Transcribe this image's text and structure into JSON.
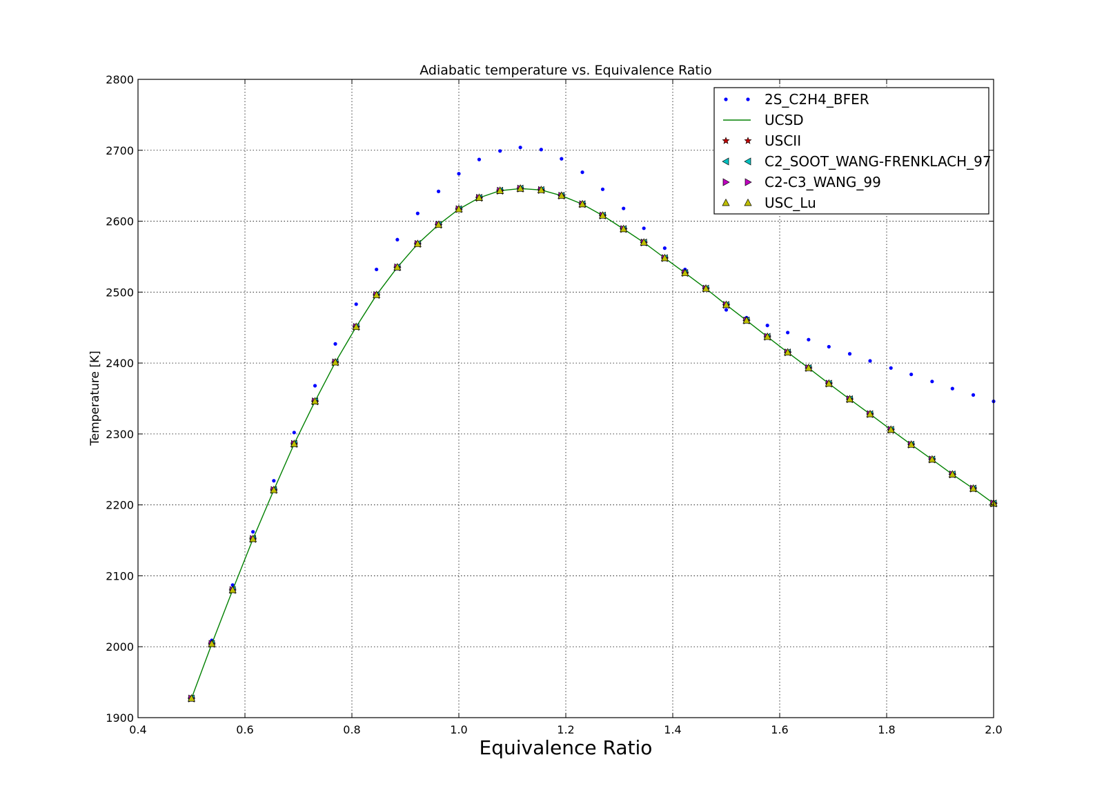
{
  "chart_data": {
    "type": "line",
    "title": "Adiabatic temperature vs. Equivalence Ratio",
    "xlabel": "Equivalence Ratio",
    "ylabel": "Temperature [K]",
    "xlim": [
      0.4,
      2.0
    ],
    "ylim": [
      1900,
      2800
    ],
    "xticks": [
      0.4,
      0.6,
      0.8,
      1.0,
      1.2,
      1.4,
      1.6,
      1.8,
      2.0
    ],
    "xtick_labels": [
      "0.4",
      "0.6",
      "0.8",
      "1.0",
      "1.2",
      "1.4",
      "1.6",
      "1.8",
      "2.0"
    ],
    "yticks": [
      1900,
      2000,
      2100,
      2200,
      2300,
      2400,
      2500,
      2600,
      2700,
      2800
    ],
    "ytick_labels": [
      "1900",
      "2000",
      "2100",
      "2200",
      "2300",
      "2400",
      "2500",
      "2600",
      "2700",
      "2800"
    ],
    "grid": true,
    "legend_position": "top-right",
    "x": [
      0.5,
      0.538,
      0.577,
      0.615,
      0.654,
      0.692,
      0.731,
      0.769,
      0.808,
      0.846,
      0.885,
      0.923,
      0.962,
      1.0,
      1.038,
      1.077,
      1.115,
      1.154,
      1.192,
      1.231,
      1.269,
      1.308,
      1.346,
      1.385,
      1.423,
      1.462,
      1.5,
      1.538,
      1.577,
      1.615,
      1.654,
      1.692,
      1.731,
      1.769,
      1.808,
      1.846,
      1.885,
      1.923,
      1.962,
      2.0
    ],
    "series": [
      {
        "name": "2S_C2H4_BFER",
        "marker": "dot",
        "color": "#0000ff",
        "values": [
          1929,
          2009,
          2087,
          2162,
          2234,
          2302,
          2368,
          2427,
          2483,
          2532,
          2574,
          2611,
          2642,
          2667,
          2687,
          2699,
          2704,
          2701,
          2688,
          2669,
          2645,
          2618,
          2590,
          2562,
          2532,
          2505,
          2475,
          2464,
          2453,
          2443,
          2433,
          2423,
          2413,
          2403,
          2393,
          2384,
          2374,
          2364,
          2355,
          2346
        ]
      },
      {
        "name": "UCSD",
        "marker": "line",
        "color": "#008000",
        "values": [
          1927,
          2004,
          2080,
          2152,
          2221,
          2286,
          2346,
          2401,
          2451,
          2496,
          2535,
          2568,
          2595,
          2617,
          2633,
          2643,
          2646,
          2644,
          2636,
          2624,
          2608,
          2589,
          2570,
          2548,
          2527,
          2505,
          2482,
          2460,
          2437,
          2415,
          2393,
          2371,
          2349,
          2328,
          2306,
          2285,
          2264,
          2243,
          2223,
          2202
        ]
      },
      {
        "name": "USCII",
        "marker": "star",
        "color": "#bf0000",
        "values": [
          1927,
          2004,
          2080,
          2152,
          2221,
          2286,
          2346,
          2401,
          2451,
          2496,
          2535,
          2568,
          2595,
          2617,
          2633,
          2643,
          2646,
          2644,
          2636,
          2624,
          2608,
          2589,
          2570,
          2548,
          2527,
          2505,
          2482,
          2460,
          2437,
          2415,
          2393,
          2371,
          2349,
          2328,
          2306,
          2285,
          2264,
          2243,
          2223,
          2202
        ]
      },
      {
        "name": "C2_SOOT_WANG-FRENKLACH_97",
        "marker": "triangle-left",
        "color": "#00bfbf",
        "values": [
          1927,
          2004,
          2080,
          2152,
          2221,
          2286,
          2346,
          2401,
          2451,
          2496,
          2535,
          2568,
          2595,
          2617,
          2633,
          2643,
          2646,
          2644,
          2636,
          2624,
          2608,
          2589,
          2570,
          2548,
          2527,
          2505,
          2482,
          2460,
          2437,
          2415,
          2393,
          2371,
          2349,
          2328,
          2306,
          2285,
          2264,
          2243,
          2223,
          2202
        ]
      },
      {
        "name": "C2-C3_WANG_99",
        "marker": "triangle-right",
        "color": "#bf00bf",
        "values": [
          1927,
          2004,
          2080,
          2152,
          2221,
          2286,
          2346,
          2401,
          2451,
          2496,
          2535,
          2568,
          2595,
          2617,
          2633,
          2643,
          2646,
          2644,
          2636,
          2624,
          2608,
          2589,
          2570,
          2548,
          2527,
          2505,
          2482,
          2460,
          2437,
          2415,
          2393,
          2371,
          2349,
          2328,
          2306,
          2285,
          2264,
          2243,
          2223,
          2202
        ]
      },
      {
        "name": "USC_Lu",
        "marker": "triangle-up",
        "color": "#bfbf00",
        "values": [
          1927,
          2004,
          2080,
          2152,
          2221,
          2286,
          2346,
          2401,
          2451,
          2496,
          2535,
          2568,
          2595,
          2617,
          2633,
          2643,
          2646,
          2644,
          2636,
          2624,
          2608,
          2589,
          2570,
          2548,
          2527,
          2505,
          2482,
          2460,
          2437,
          2415,
          2393,
          2371,
          2349,
          2328,
          2306,
          2285,
          2264,
          2243,
          2223,
          2202
        ]
      }
    ]
  }
}
